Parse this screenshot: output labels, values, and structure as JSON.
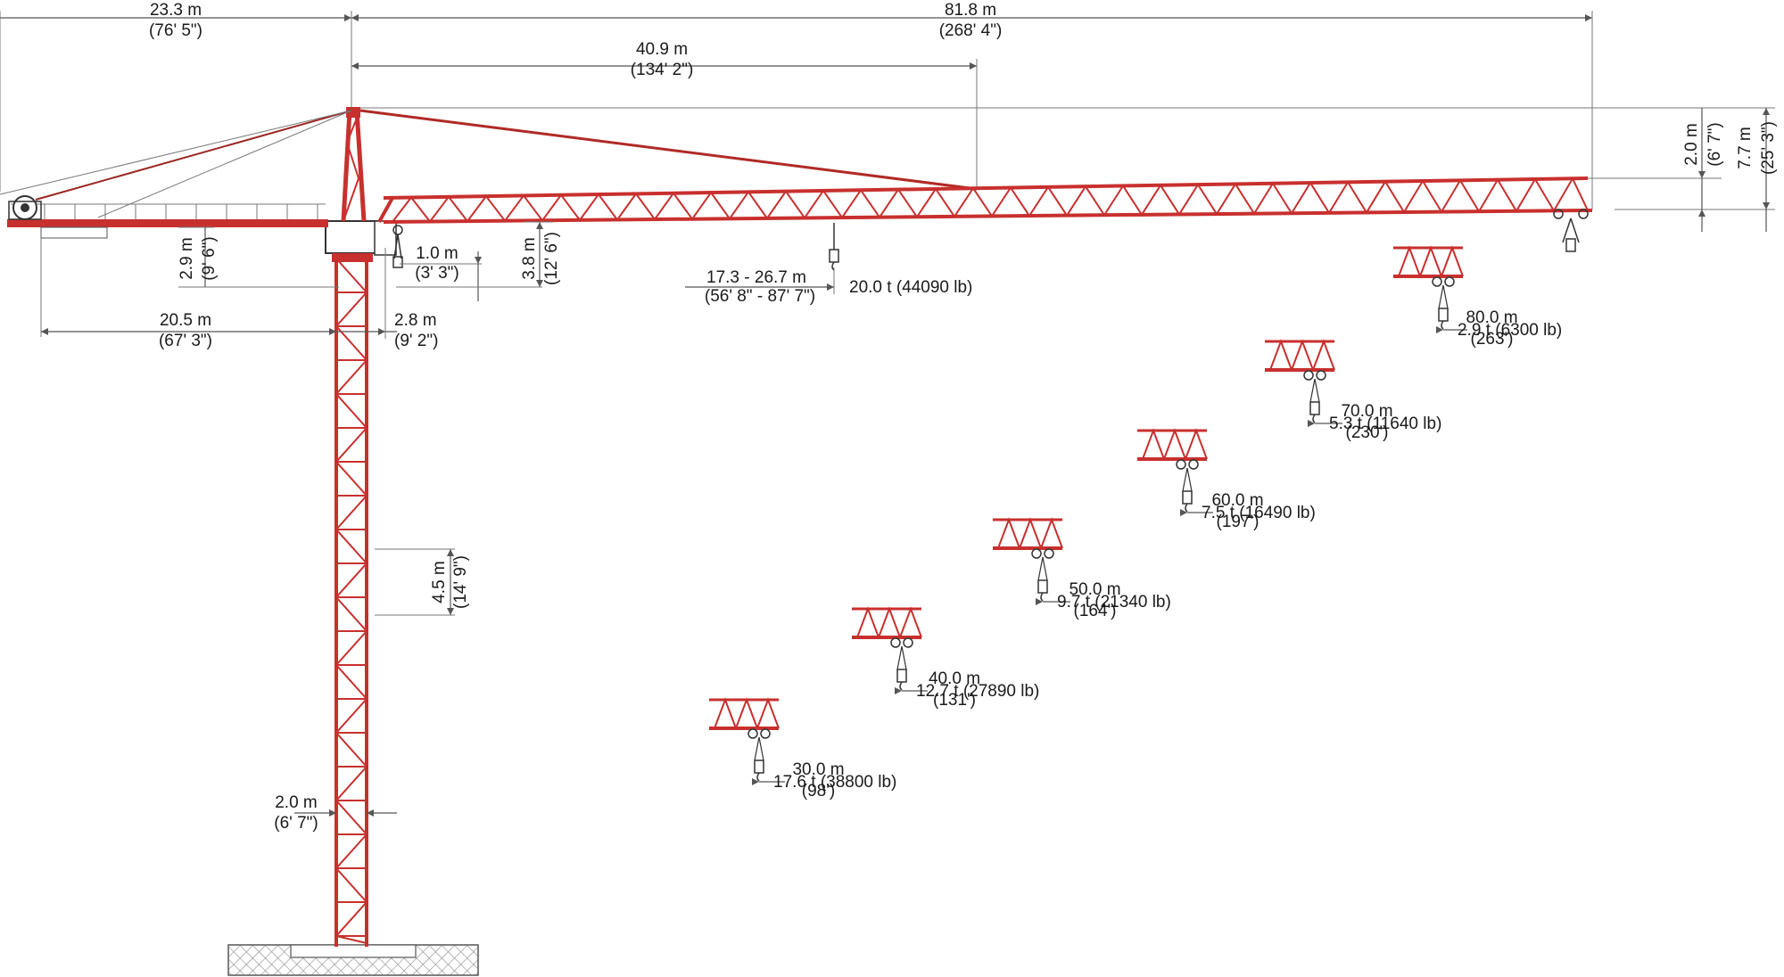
{
  "colors": {
    "crane_red": "#c8302e",
    "dimension_line": "#555555",
    "foundation_hatch": "#888888"
  },
  "top_dimensions": {
    "counter_jib_length": {
      "metric": "23.3 m",
      "imperial": "(76' 5\")"
    },
    "jib_length": {
      "metric": "81.8 m",
      "imperial": "(268' 4\")"
    },
    "pendant_attach": {
      "metric": "40.9 m",
      "imperial": "(134' 2\")"
    }
  },
  "right_heights": {
    "jib_tip_drop": {
      "metric": "2.0 m",
      "imperial": "(6' 7\")"
    },
    "total_head": {
      "metric": "7.7 m",
      "imperial": "(25' 3\")"
    }
  },
  "counter_jib": {
    "height": {
      "metric": "2.9 m",
      "imperial": "(9' 6\")"
    },
    "ballast_radius": {
      "metric": "20.5 m",
      "imperial": "(67' 3\")"
    },
    "slewing_offset": {
      "metric": "2.8 m",
      "imperial": "(9' 2\")"
    }
  },
  "jib_details": {
    "min_hook": {
      "metric": "1.0 m",
      "imperial": "(3' 3\")"
    },
    "jib_height": {
      "metric": "3.8 m",
      "imperial": "(12' 6\")"
    },
    "max_load_radius": {
      "metric": "17.3 - 26.7 m",
      "imperial": "(56' 8\" - 87' 7\")"
    },
    "max_load": "20.0 t (44090 lb)"
  },
  "tower": {
    "section_height": {
      "metric": "4.5 m",
      "imperial": "(14' 9\")"
    },
    "width": {
      "metric": "2.0 m",
      "imperial": "(6' 7\")"
    }
  },
  "load_points": [
    {
      "radius_m": "80.0 m",
      "radius_ft": "(263')",
      "capacity": "2.9 t (6300 lb)"
    },
    {
      "radius_m": "70.0 m",
      "radius_ft": "(230')",
      "capacity": "5.3 t (11640 lb)"
    },
    {
      "radius_m": "60.0 m",
      "radius_ft": "(197')",
      "capacity": "7.5 t (16490 lb)"
    },
    {
      "radius_m": "50.0 m",
      "radius_ft": "(164')",
      "capacity": "9.7 t (21340 lb)"
    },
    {
      "radius_m": "40.0 m",
      "radius_ft": "(131')",
      "capacity": "12.7 t (27890 lb)"
    },
    {
      "radius_m": "30.0 m",
      "radius_ft": "(98')",
      "capacity": "17.6 t (38800 lb)"
    }
  ]
}
